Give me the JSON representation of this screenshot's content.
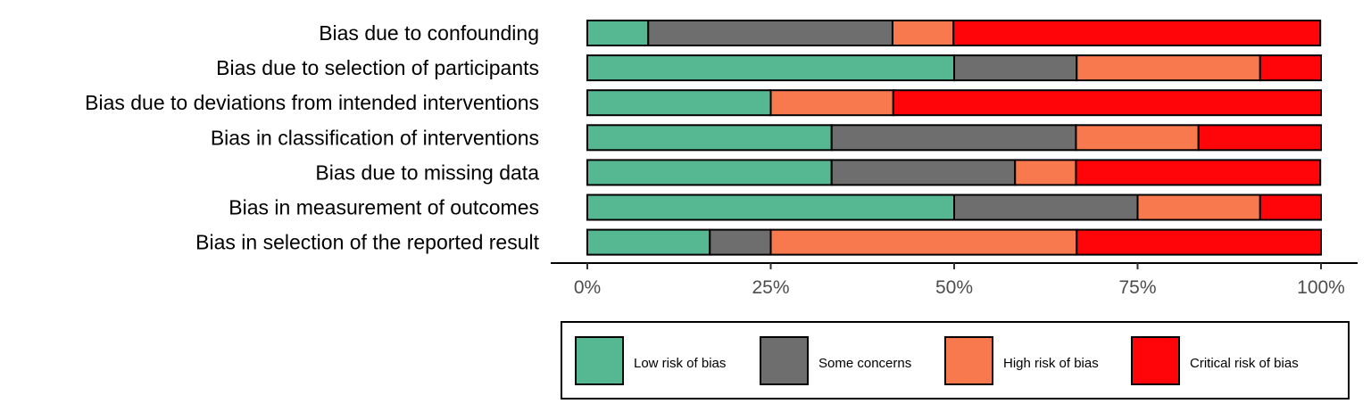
{
  "chart_data": {
    "type": "bar",
    "stacked": true,
    "orientation": "horizontal",
    "categories": [
      "Bias due to confounding",
      "Bias due to selection of participants",
      "Bias due to deviations from intended interventions",
      "Bias in classification of interventions",
      "Bias due to missing data",
      "Bias in measurement of outcomes",
      "Bias in selection of the reported result"
    ],
    "series": [
      {
        "name": "Low risk of bias",
        "color": "#56B893",
        "values": [
          8.3,
          50,
          25,
          33.3,
          33.3,
          50,
          16.7
        ]
      },
      {
        "name": "Some concerns",
        "color": "#6E6E6E",
        "values": [
          33.3,
          16.7,
          0,
          33.3,
          25,
          25,
          8.3
        ]
      },
      {
        "name": "High risk of bias",
        "color": "#F9794F",
        "values": [
          8.3,
          25,
          16.7,
          16.7,
          8.3,
          16.7,
          41.7
        ]
      },
      {
        "name": "Critical risk of bias",
        "color": "#FF0409",
        "values": [
          50,
          8.3,
          58.3,
          16.7,
          33.3,
          8.3,
          33.3
        ]
      }
    ],
    "xlim": [
      0,
      100
    ],
    "xticks": [
      0,
      25,
      50,
      75,
      100
    ],
    "xtick_labels": [
      "0%",
      "25%",
      "50%",
      "75%",
      "100%"
    ],
    "legend_position": "bottom",
    "grid": false
  }
}
